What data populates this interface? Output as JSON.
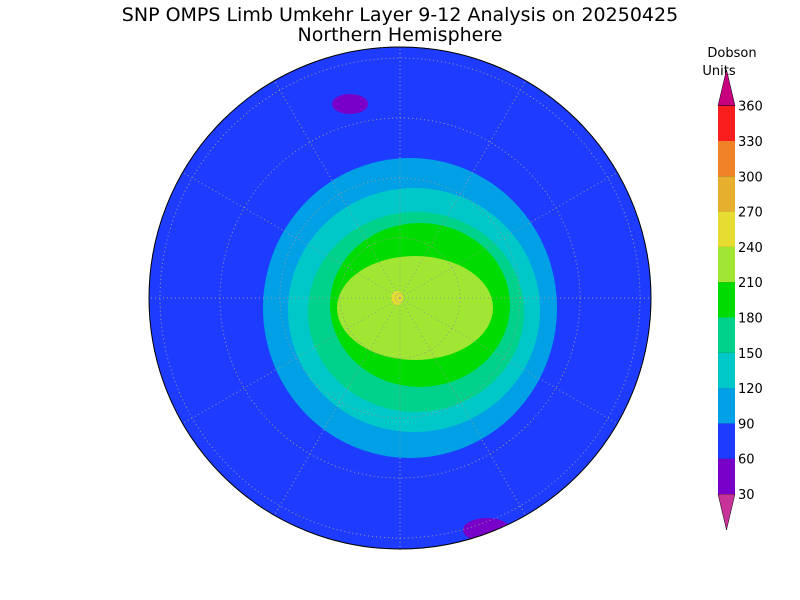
{
  "header": {
    "title": "SNP OMPS Limb Umkehr Layer 9-12 Analysis on 20250425",
    "subtitle": "Northern Hemisphere"
  },
  "colorbar": {
    "label_lines": [
      "Dobson",
      "Units"
    ],
    "ticks": [
      30,
      60,
      90,
      120,
      150,
      180,
      210,
      240,
      270,
      300,
      330,
      360
    ],
    "colors": [
      "#c8329b",
      "#7800c8",
      "#1e3cff",
      "#00a0e6",
      "#00c8c8",
      "#00d28c",
      "#00dc00",
      "#a0e632",
      "#e6dc32",
      "#e6af2d",
      "#f08228",
      "#fa1e1e",
      "#c8007f"
    ]
  }
}
